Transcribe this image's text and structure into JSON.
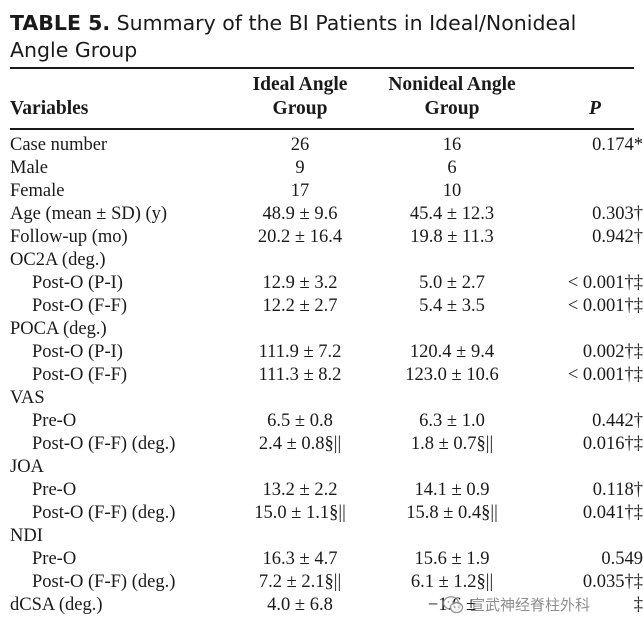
{
  "caption": {
    "label": "TABLE 5.",
    "text": "Summary of the BI Patients in Ideal/Nonideal Angle Group"
  },
  "headers": {
    "variables": "Variables",
    "ideal_line1": "Ideal Angle",
    "ideal_line2": "Group",
    "nonideal_line1": "Nonideal Angle",
    "nonideal_line2": "Group",
    "p": "P"
  },
  "rows": [
    {
      "variable": "Case number",
      "ideal": "26",
      "nonideal": "16",
      "p": "0.174*"
    },
    {
      "variable": "Male",
      "ideal": "9",
      "nonideal": "6",
      "p": ""
    },
    {
      "variable": "Female",
      "ideal": "17",
      "nonideal": "10",
      "p": ""
    },
    {
      "variable": "Age (mean ± SD) (y)",
      "ideal": "48.9 ± 9.6",
      "nonideal": "45.4 ± 12.3",
      "p": "0.303†"
    },
    {
      "variable": "Follow-up (mo)",
      "ideal": "20.2 ± 16.4",
      "nonideal": "19.8 ± 11.3",
      "p": "0.942†"
    },
    {
      "variable": "OC2A (deg.)",
      "ideal": "",
      "nonideal": "",
      "p": ""
    },
    {
      "variable": "Post-O (P-I)",
      "ideal": "12.9 ± 3.2",
      "nonideal": "5.0 ± 2.7",
      "p": "< 0.001†‡"
    },
    {
      "variable": "Post-O (F-F)",
      "ideal": "12.2 ± 2.7",
      "nonideal": "5.4 ± 3.5",
      "p": "< 0.001†‡"
    },
    {
      "variable": "POCA (deg.)",
      "ideal": "",
      "nonideal": "",
      "p": ""
    },
    {
      "variable": "Post-O (P-I)",
      "ideal": "111.9 ± 7.2",
      "nonideal": "120.4 ± 9.4",
      "p": "0.002†‡"
    },
    {
      "variable": "Post-O (F-F)",
      "ideal": "111.3 ± 8.2",
      "nonideal": "123.0 ± 10.6",
      "p": "< 0.001†‡"
    },
    {
      "variable": "VAS",
      "ideal": "",
      "nonideal": "",
      "p": ""
    },
    {
      "variable": "Pre-O",
      "ideal": "6.5 ± 0.8",
      "nonideal": "6.3 ± 1.0",
      "p": "0.442†"
    },
    {
      "variable": "Post-O (F-F) (deg.)",
      "ideal": "2.4 ± 0.8§||",
      "nonideal": "1.8 ± 0.7§||",
      "p": "0.016†‡"
    },
    {
      "variable": "JOA",
      "ideal": "",
      "nonideal": "",
      "p": ""
    },
    {
      "variable": "Pre-O",
      "ideal": "13.2 ± 2.2",
      "nonideal": "14.1 ± 0.9",
      "p": "0.118†"
    },
    {
      "variable": "Post-O (F-F) (deg.)",
      "ideal": "15.0 ± 1.1§||",
      "nonideal": "15.8 ± 0.4§||",
      "p": "0.041†‡"
    },
    {
      "variable": "NDI",
      "ideal": "",
      "nonideal": "",
      "p": ""
    },
    {
      "variable": "Pre-O",
      "ideal": "16.3 ± 4.7",
      "nonideal": "15.6 ± 1.9",
      "p": "0.549"
    },
    {
      "variable": "Post-O (F-F) (deg.)",
      "ideal": "7.2 ± 2.1§||",
      "nonideal": "6.1 ± 1.2§||",
      "p": "0.035†‡"
    },
    {
      "variable": "dCSA (deg.)",
      "ideal": "4.0 ± 6.8",
      "nonideal": "−1.6 ± ",
      "p": "‡"
    }
  ],
  "subrows": [
    6,
    7,
    9,
    10,
    12,
    13,
    15,
    16,
    18,
    19
  ],
  "watermark": {
    "text": "宣武神经脊柱外科",
    "icon": "wechat-icon"
  }
}
